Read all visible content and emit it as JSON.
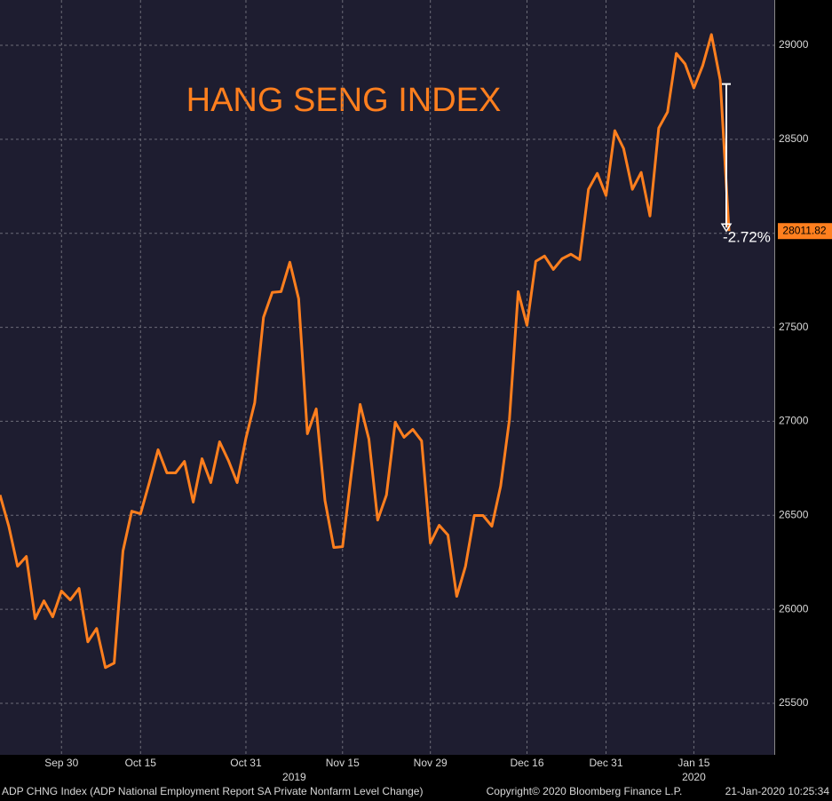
{
  "chart_data": {
    "type": "line",
    "title": "HANG SENG INDEX",
    "categories": [
      null,
      null,
      null,
      null,
      null,
      null,
      null,
      "Sep 30",
      null,
      null,
      null,
      null,
      null,
      null,
      null,
      null,
      "Oct 15",
      null,
      null,
      null,
      null,
      null,
      null,
      null,
      null,
      null,
      null,
      null,
      "Oct 31",
      null,
      null,
      null,
      null,
      null,
      null,
      null,
      null,
      null,
      null,
      "Nov 15",
      null,
      null,
      null,
      null,
      null,
      null,
      null,
      null,
      null,
      "Nov 29",
      null,
      null,
      null,
      null,
      null,
      null,
      null,
      null,
      null,
      null,
      "Dec 16",
      null,
      null,
      null,
      null,
      null,
      null,
      null,
      null,
      "Dec 31",
      null,
      null,
      null,
      null,
      null,
      null,
      null,
      null,
      null,
      "Jan 15",
      null,
      null,
      null,
      null
    ],
    "x_group_labels": [
      "2019",
      "2020"
    ],
    "series": [
      {
        "name": "HANG SENG INDEX",
        "color": "#ff7f1e",
        "values": [
          26608,
          26442,
          26229,
          26281,
          25950,
          26045,
          25960,
          26097,
          26050,
          26111,
          25827,
          25898,
          25690,
          25714,
          26310,
          26522,
          26508,
          26674,
          26849,
          26726,
          26726,
          26787,
          26570,
          26801,
          26674,
          26891,
          26792,
          26674,
          26910,
          27099,
          27553,
          27686,
          27690,
          27846,
          27652,
          26934,
          27066,
          26579,
          26329,
          26333,
          26721,
          27090,
          26905,
          26475,
          26608,
          26995,
          26915,
          26957,
          26896,
          26352,
          26447,
          26395,
          26069,
          26229,
          26499,
          26499,
          26442,
          26655,
          27009,
          27690,
          27511,
          27851,
          27879,
          27808,
          27865,
          27889,
          27860,
          28234,
          28319,
          28201,
          28546,
          28451,
          28234,
          28324,
          28092,
          28560,
          28645,
          28957,
          28901,
          28773,
          28891,
          29057,
          28815,
          28011.82
        ]
      }
    ],
    "annotation": {
      "text": "-2.72%",
      "from": 28794
    },
    "ylim": [
      25226,
      29241
    ],
    "yticks": [
      25500,
      26000,
      26500,
      27000,
      27500,
      28000,
      28500,
      29000
    ],
    "grid": true,
    "footer": {
      "left": "ADP CHNG Index (ADP National Employment Report SA Private Nonfarm Level Change)",
      "center": "Copyright© 2020 Bloomberg Finance L.P.",
      "right": "21-Jan-2020 10:25:34"
    }
  }
}
